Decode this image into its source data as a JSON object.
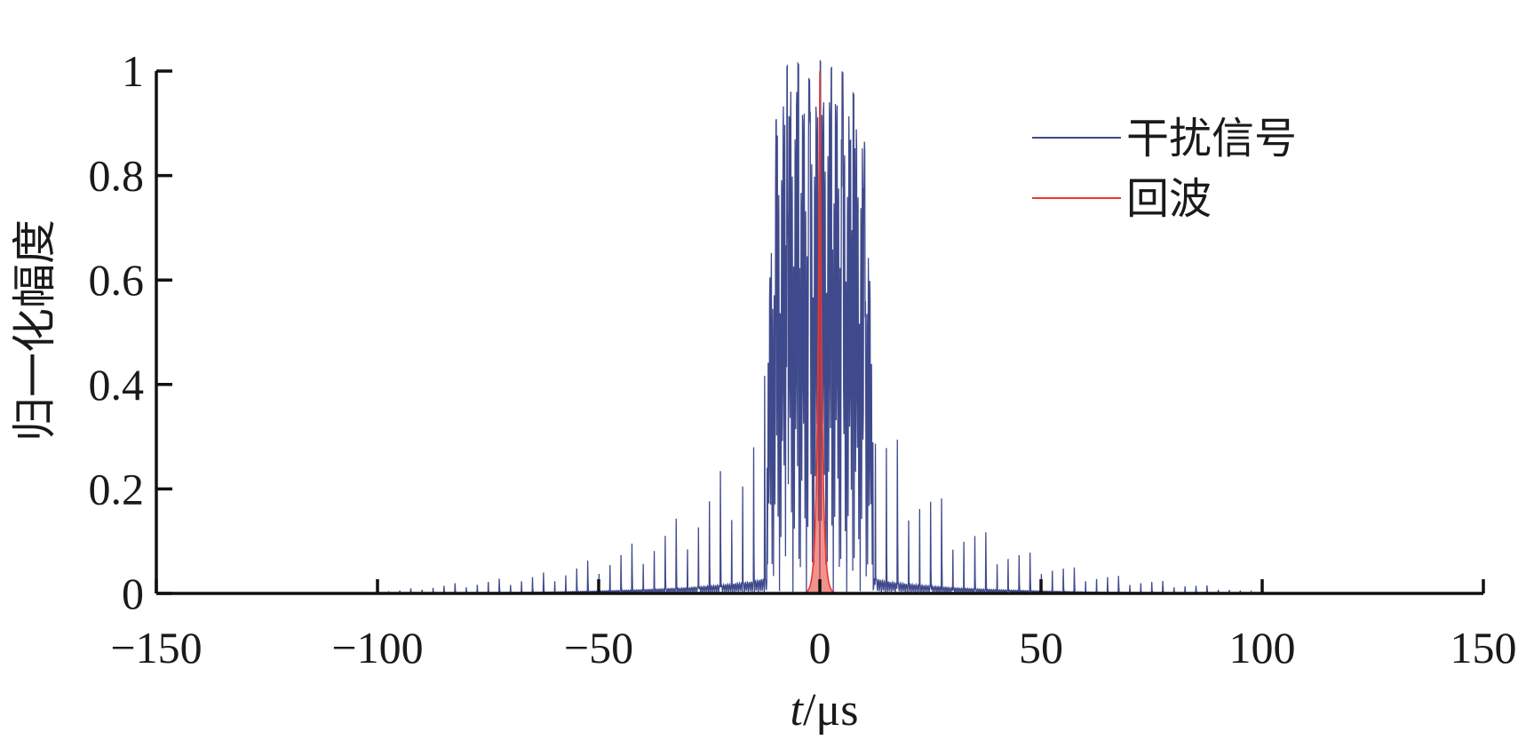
{
  "chart_data": {
    "type": "line",
    "xlabel_italic": "t",
    "xlabel_unit": "/μs",
    "ylabel": "归一化幅度",
    "xlim": [
      -150,
      150
    ],
    "ylim": [
      0,
      1
    ],
    "x_ticks": [
      -150,
      -100,
      -50,
      0,
      50,
      100,
      150
    ],
    "x_tick_labels": [
      "−150",
      "−100",
      "−50",
      "0",
      "50",
      "100",
      "150"
    ],
    "y_ticks": [
      0,
      0.2,
      0.4,
      0.6,
      0.8,
      1
    ],
    "y_tick_labels": [
      "0",
      "0.2",
      "0.4",
      "0.6",
      "0.8",
      "1"
    ],
    "grid": false,
    "legend_position": "top-right",
    "series": [
      {
        "name": "干扰信号",
        "color": "#3f4a8c",
        "description_model": "comb-pulses",
        "pulse_period": 2.5,
        "extent": [
          -100,
          100
        ],
        "peaks_x": [
          -100,
          -90,
          -80,
          -70,
          -60,
          -50,
          -40,
          -30,
          -20,
          -15,
          -12,
          -10,
          -8,
          -6,
          -4,
          -2,
          0,
          2,
          4,
          6,
          8,
          10,
          12,
          15,
          20,
          30,
          40,
          50,
          60,
          70,
          80,
          90,
          100
        ],
        "peaks_y": [
          0.0,
          0.015,
          0.025,
          0.035,
          0.05,
          0.08,
          0.12,
          0.18,
          0.3,
          0.38,
          0.5,
          0.9,
          1.0,
          1.03,
          1.0,
          0.98,
          1.02,
          1.0,
          1.02,
          0.98,
          0.95,
          0.88,
          0.5,
          0.38,
          0.3,
          0.18,
          0.12,
          0.08,
          0.05,
          0.035,
          0.025,
          0.015,
          0.0
        ]
      },
      {
        "name": "回波",
        "color": "#e8392f",
        "description_model": "single-peak",
        "peak_x": 0,
        "peak_y": 1.0,
        "width": 1.5
      }
    ]
  }
}
